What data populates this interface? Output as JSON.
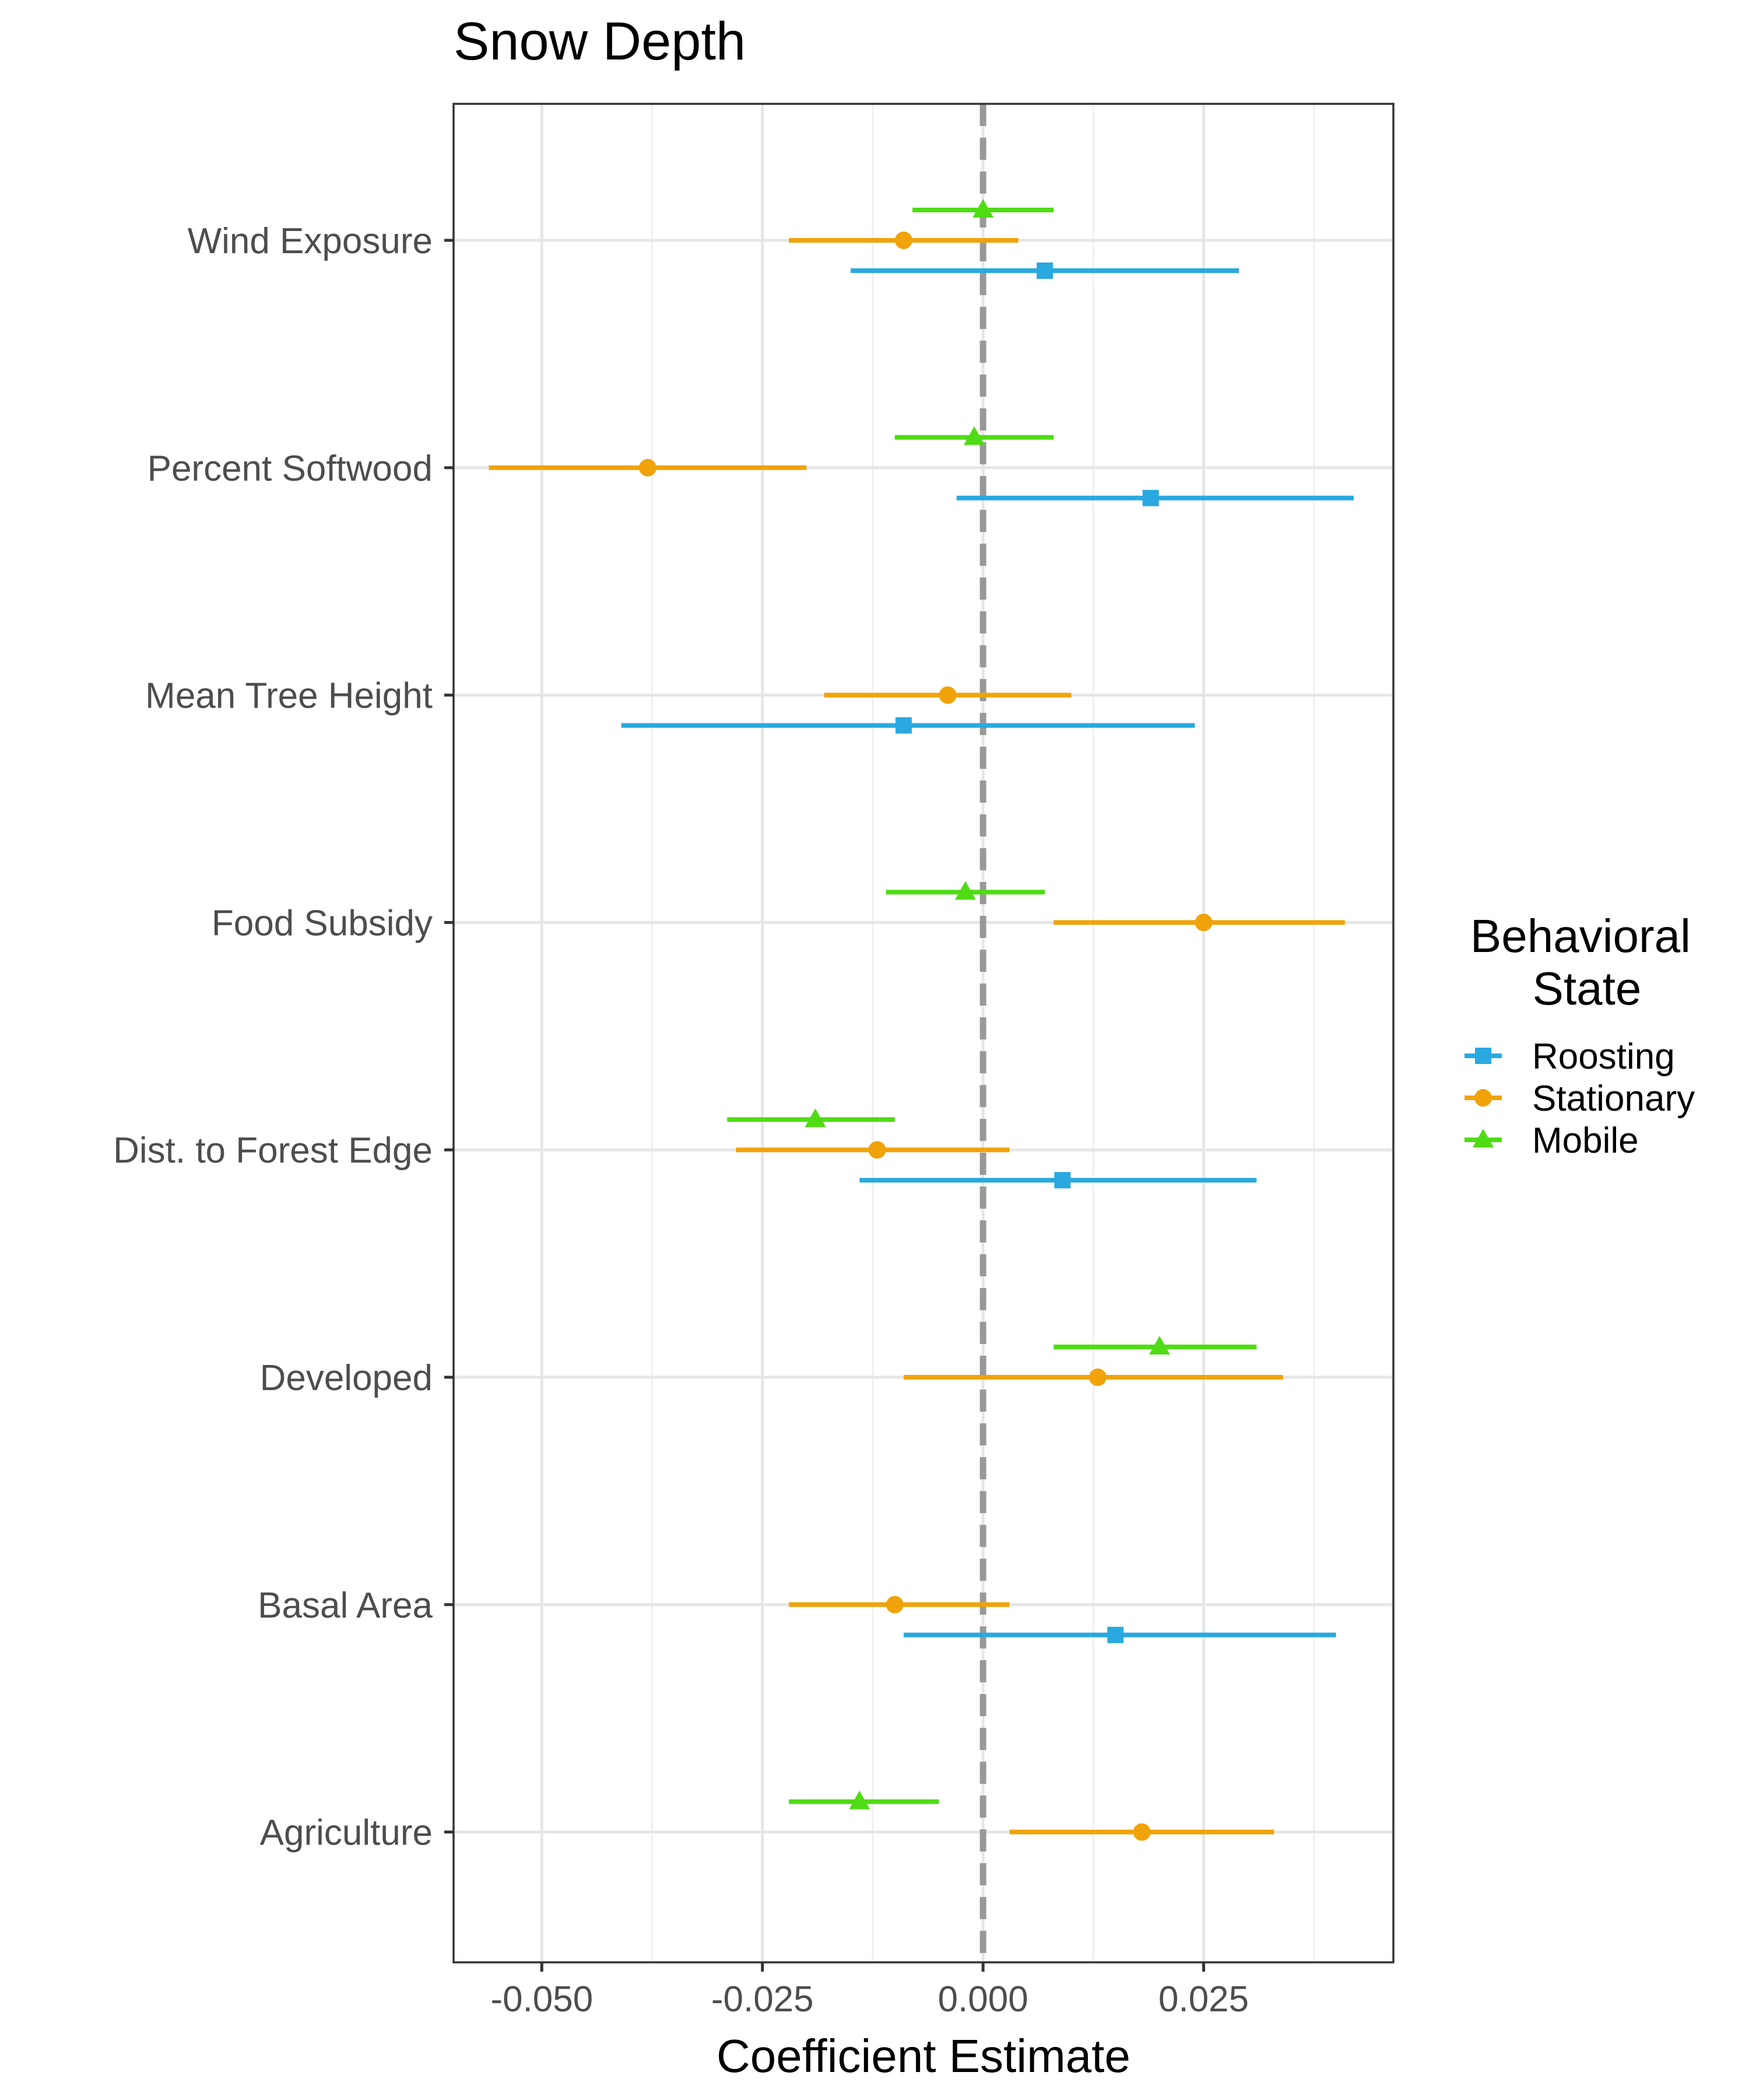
{
  "chart_data": {
    "type": "scatter",
    "subtype": "forest-plot",
    "title": "Snow Depth",
    "xlabel": "Coefficient Estimate",
    "ylabel": "",
    "xlim": [
      -0.06,
      0.0465
    ],
    "xticks": [
      -0.05,
      -0.025,
      0.0,
      0.025
    ],
    "xtick_labels": [
      "-0.050",
      "-0.025",
      "0.000",
      "0.025"
    ],
    "reference_line": 0,
    "categories": [
      "Wind Exposure",
      "Percent Softwood",
      "Mean Tree Height",
      "Food Subsidy",
      "Dist. to Forest Edge",
      "Developed",
      "Basal Area",
      "Agriculture"
    ],
    "legend": {
      "title": [
        "Behavioral",
        "State"
      ],
      "placement": "right"
    },
    "grid": true,
    "series": [
      {
        "name": "Roosting",
        "color": "#29a9e0",
        "marker": "square",
        "points": [
          {
            "category": "Wind Exposure",
            "estimate": 0.007,
            "low": -0.015,
            "high": 0.029
          },
          {
            "category": "Percent Softwood",
            "estimate": 0.019,
            "low": -0.003,
            "high": 0.042
          },
          {
            "category": "Mean Tree Height",
            "estimate": -0.009,
            "low": -0.041,
            "high": 0.024
          },
          {
            "category": "Dist. to Forest Edge",
            "estimate": 0.009,
            "low": -0.014,
            "high": 0.031
          },
          {
            "category": "Basal Area",
            "estimate": 0.015,
            "low": -0.009,
            "high": 0.04
          }
        ]
      },
      {
        "name": "Stationary",
        "color": "#f0a30a",
        "marker": "circle",
        "points": [
          {
            "category": "Wind Exposure",
            "estimate": -0.009,
            "low": -0.022,
            "high": 0.004
          },
          {
            "category": "Percent Softwood",
            "estimate": -0.038,
            "low": -0.056,
            "high": -0.02
          },
          {
            "category": "Mean Tree Height",
            "estimate": -0.004,
            "low": -0.018,
            "high": 0.01
          },
          {
            "category": "Food Subsidy",
            "estimate": 0.025,
            "low": 0.008,
            "high": 0.041
          },
          {
            "category": "Dist. to Forest Edge",
            "estimate": -0.012,
            "low": -0.028,
            "high": 0.003
          },
          {
            "category": "Developed",
            "estimate": 0.013,
            "low": -0.009,
            "high": 0.034
          },
          {
            "category": "Basal Area",
            "estimate": -0.01,
            "low": -0.022,
            "high": 0.003
          },
          {
            "category": "Agriculture",
            "estimate": 0.018,
            "low": 0.003,
            "high": 0.033
          }
        ]
      },
      {
        "name": "Mobile",
        "color": "#4fdc14",
        "marker": "triangle",
        "points": [
          {
            "category": "Wind Exposure",
            "estimate": 0.0,
            "low": -0.008,
            "high": 0.008
          },
          {
            "category": "Percent Softwood",
            "estimate": -0.001,
            "low": -0.01,
            "high": 0.008
          },
          {
            "category": "Food Subsidy",
            "estimate": -0.002,
            "low": -0.011,
            "high": 0.007
          },
          {
            "category": "Dist. to Forest Edge",
            "estimate": -0.019,
            "low": -0.029,
            "high": -0.01
          },
          {
            "category": "Developed",
            "estimate": 0.02,
            "low": 0.008,
            "high": 0.031
          },
          {
            "category": "Agriculture",
            "estimate": -0.014,
            "low": -0.022,
            "high": -0.005
          }
        ]
      }
    ]
  }
}
